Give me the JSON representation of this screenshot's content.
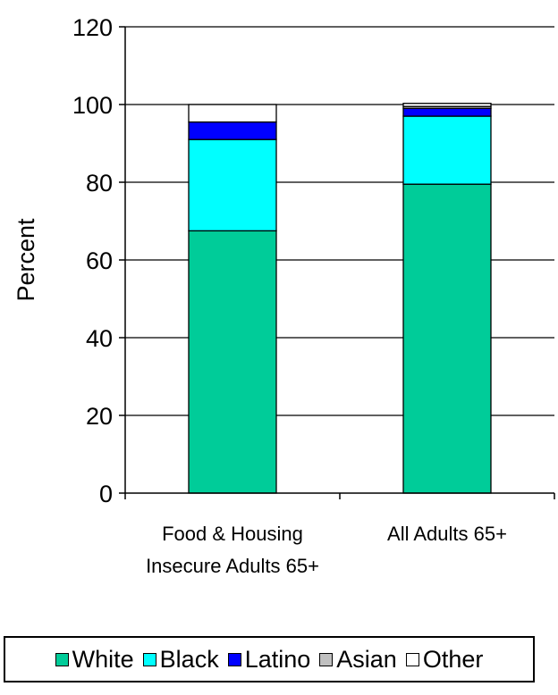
{
  "chart_data": {
    "type": "bar",
    "stacked": true,
    "title": "",
    "xlabel": "",
    "ylabel": "Percent",
    "ylim": [
      0,
      120
    ],
    "yticks": [
      0,
      20,
      40,
      60,
      80,
      100,
      120
    ],
    "grid": true,
    "legend_position": "bottom",
    "categories": [
      [
        "Food & Housing",
        "Insecure Adults 65+"
      ],
      [
        "All Adults 65+"
      ]
    ],
    "series": [
      {
        "name": "White",
        "color": "#00cc99",
        "values": [
          67.5,
          79.5
        ]
      },
      {
        "name": "Black",
        "color": "#00ffff",
        "values": [
          23.5,
          17.5
        ]
      },
      {
        "name": "Latino",
        "color": "#0000ff",
        "values": [
          4.5,
          2.0
        ]
      },
      {
        "name": "Asian",
        "color": "#c0c0c0",
        "values": [
          0.0,
          0.5
        ]
      },
      {
        "name": "Other",
        "color": "#ffffff",
        "values": [
          4.5,
          0.8
        ]
      }
    ]
  }
}
